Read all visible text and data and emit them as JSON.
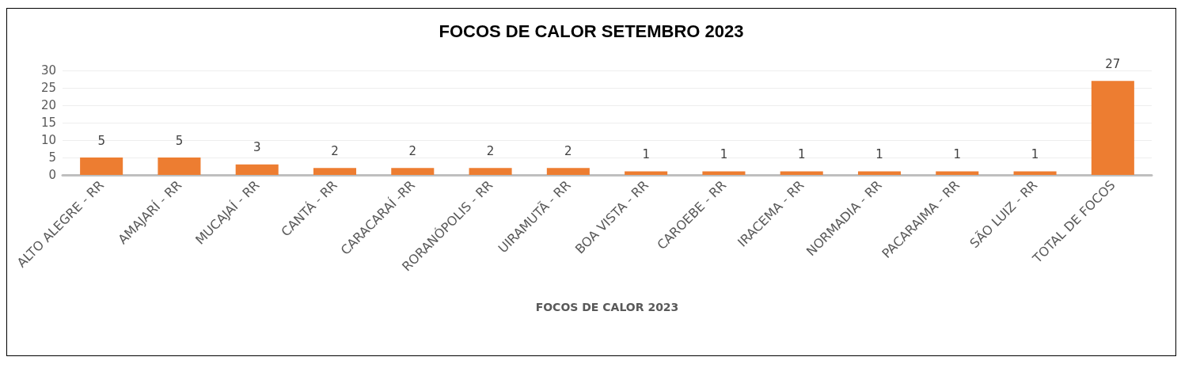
{
  "chart_data": {
    "type": "bar",
    "title": "FOCOS DE CALOR SETEMBRO 2023",
    "xlabel": "FOCOS DE CALOR 2023",
    "categories": [
      "ALTO ALEGRE - RR",
      "AMAJARÍ - RR",
      "MUCAJAÍ - RR",
      "CANTÁ - RR",
      "CARACARAÍ -RR",
      "RORANÓPOLIS - RR",
      "UIRAMUTÃ - RR",
      "BOA VISTA - RR",
      "CAROEBE - RR",
      "IRACEMA - RR",
      "NORMADIA - RR",
      "PACARAIMA - RR",
      "SÃO LUIZ - RR",
      "TOTAL DE FOCOS"
    ],
    "values": [
      5,
      5,
      3,
      2,
      2,
      2,
      2,
      1,
      1,
      1,
      1,
      1,
      1,
      27
    ],
    "color": "#ed7d31",
    "ylim": [
      0,
      30
    ],
    "yticks": [
      0,
      5,
      10,
      15,
      20,
      25,
      30
    ],
    "grid": "y",
    "data_labels": true
  }
}
